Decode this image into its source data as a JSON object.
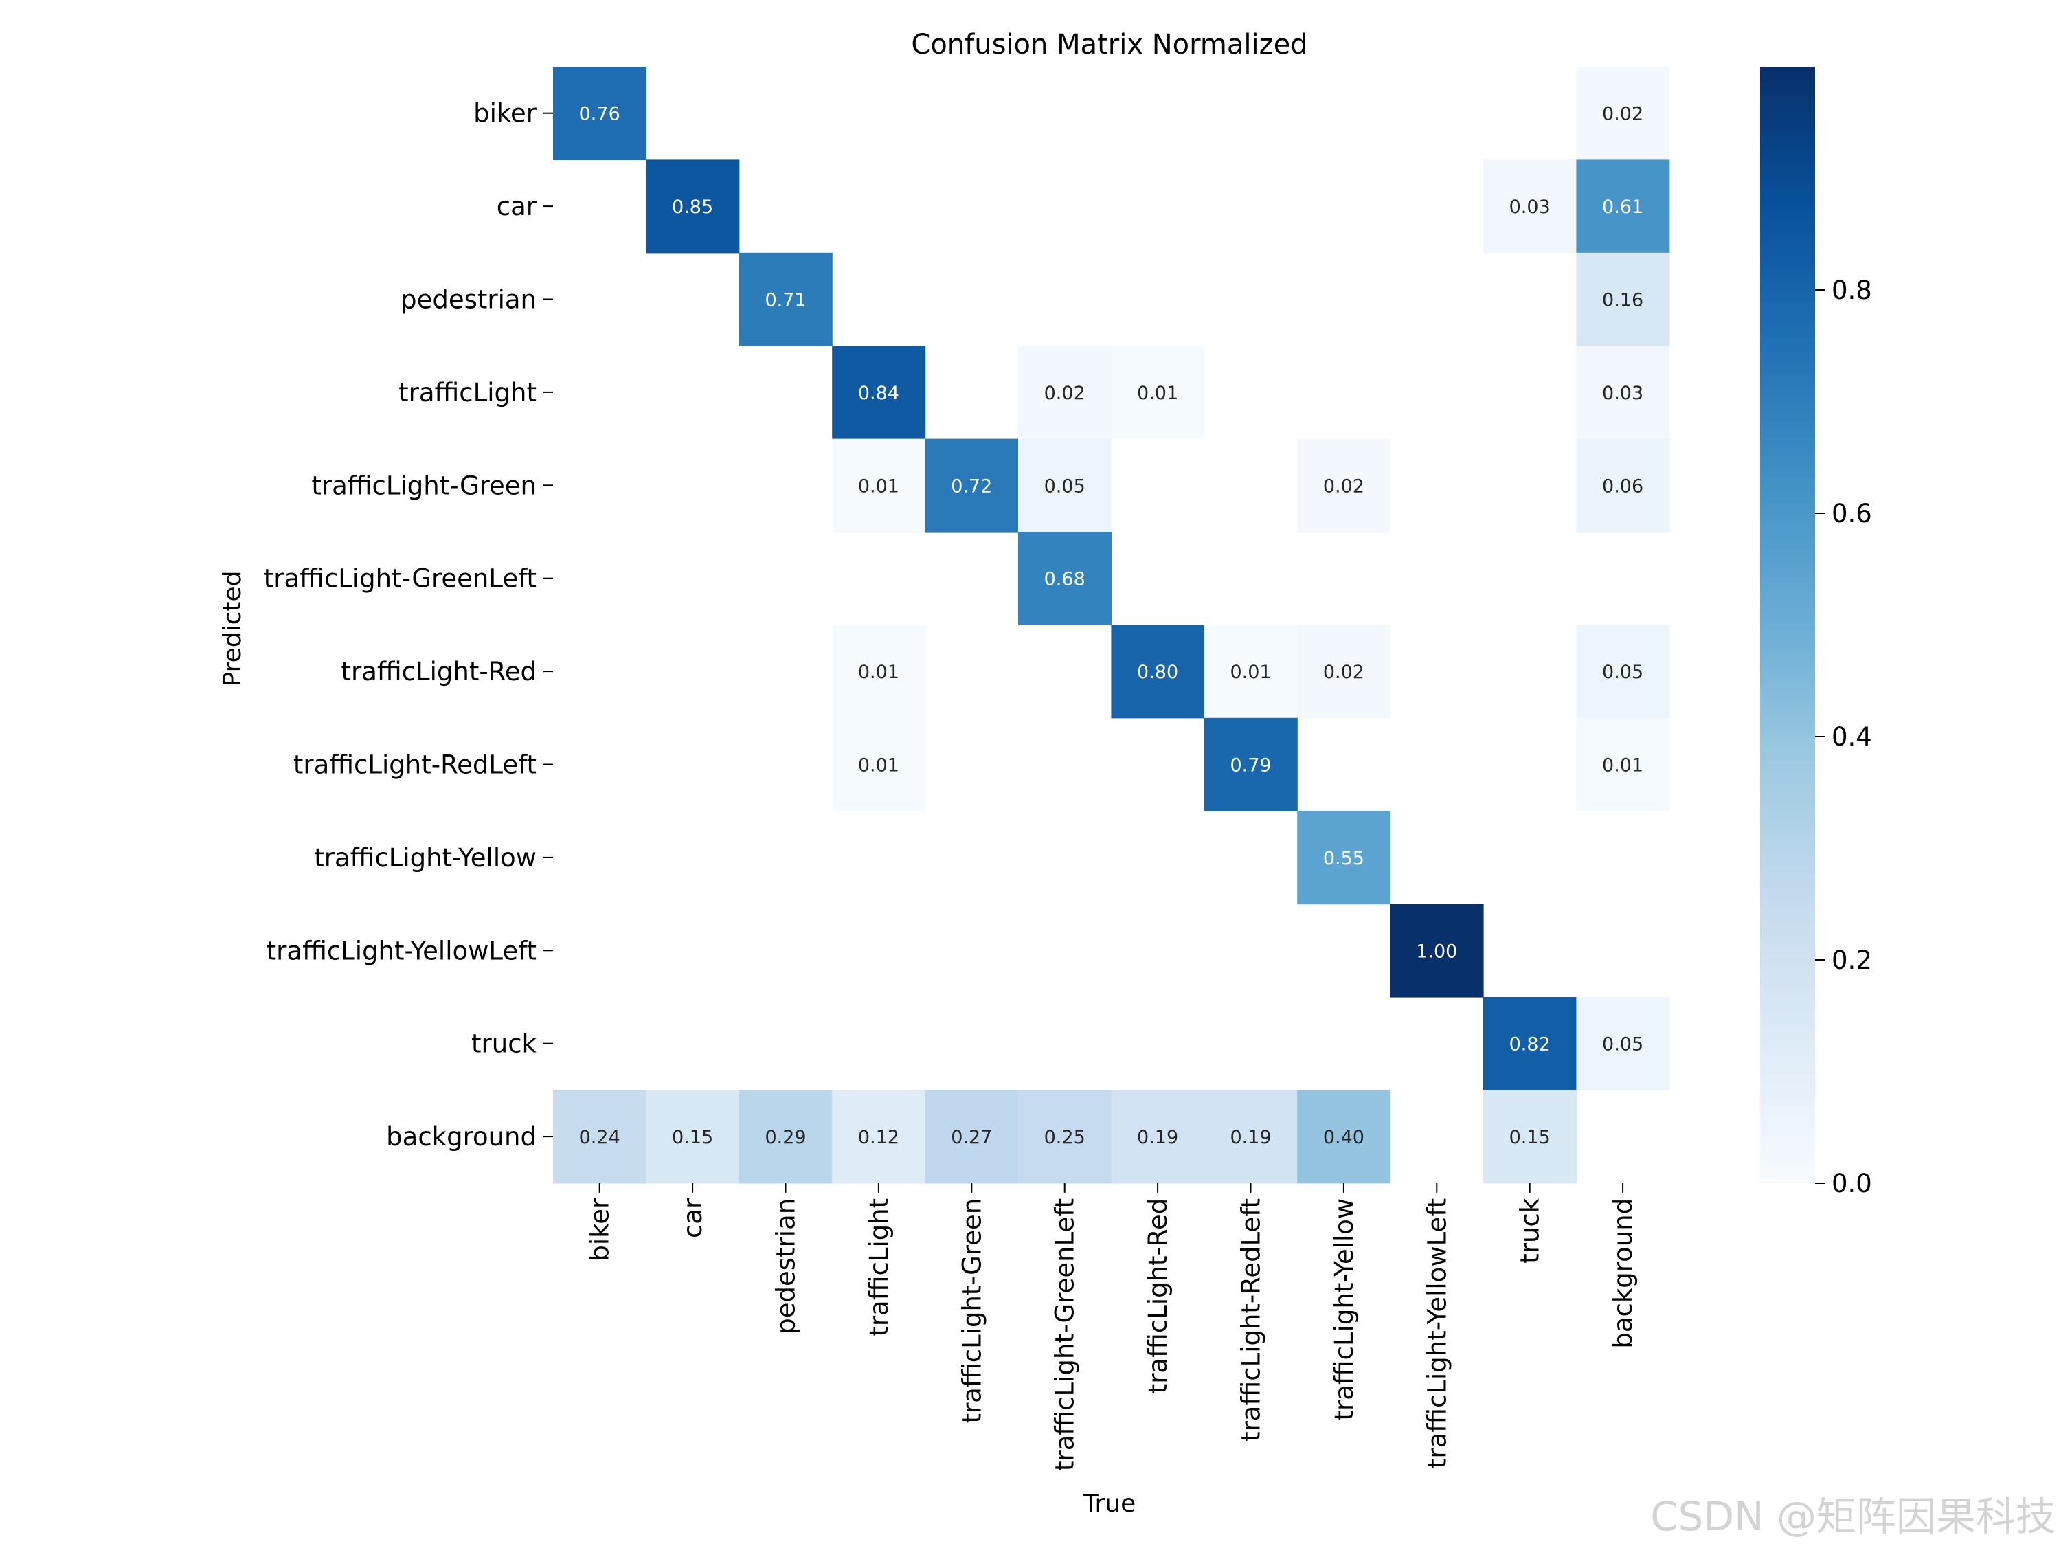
{
  "chart_data": {
    "type": "heatmap",
    "title": "Confusion Matrix Normalized",
    "xlabel": "True",
    "ylabel": "Predicted",
    "x_categories": [
      "biker",
      "car",
      "pedestrian",
      "trafficLight",
      "trafficLight-Green",
      "trafficLight-GreenLeft",
      "trafficLight-Red",
      "trafficLight-RedLeft",
      "trafficLight-Yellow",
      "trafficLight-YellowLeft",
      "truck",
      "background"
    ],
    "y_categories": [
      "biker",
      "car",
      "pedestrian",
      "trafficLight",
      "trafficLight-Green",
      "trafficLight-GreenLeft",
      "trafficLight-Red",
      "trafficLight-RedLeft",
      "trafficLight-Yellow",
      "trafficLight-YellowLeft",
      "truck",
      "background"
    ],
    "values": [
      [
        0.76,
        null,
        null,
        null,
        null,
        null,
        null,
        null,
        null,
        null,
        null,
        0.02
      ],
      [
        null,
        0.85,
        null,
        null,
        null,
        null,
        null,
        null,
        null,
        null,
        0.03,
        0.61
      ],
      [
        null,
        null,
        0.71,
        null,
        null,
        null,
        null,
        null,
        null,
        null,
        null,
        0.16
      ],
      [
        null,
        null,
        null,
        0.84,
        null,
        0.02,
        0.01,
        null,
        null,
        null,
        null,
        0.03
      ],
      [
        null,
        null,
        null,
        0.01,
        0.72,
        0.05,
        null,
        null,
        0.02,
        null,
        null,
        0.06
      ],
      [
        null,
        null,
        null,
        null,
        null,
        0.68,
        null,
        null,
        null,
        null,
        null,
        null
      ],
      [
        null,
        null,
        null,
        0.01,
        null,
        null,
        0.8,
        0.01,
        0.02,
        null,
        null,
        0.05
      ],
      [
        null,
        null,
        null,
        0.01,
        null,
        null,
        null,
        0.79,
        null,
        null,
        null,
        0.01
      ],
      [
        null,
        null,
        null,
        null,
        null,
        null,
        null,
        null,
        0.55,
        null,
        null,
        null
      ],
      [
        null,
        null,
        null,
        null,
        null,
        null,
        null,
        null,
        null,
        1.0,
        null,
        null
      ],
      [
        null,
        null,
        null,
        null,
        null,
        null,
        null,
        null,
        null,
        null,
        0.82,
        0.05
      ],
      [
        0.24,
        0.15,
        0.29,
        0.12,
        0.27,
        0.25,
        0.19,
        0.19,
        0.4,
        null,
        0.15,
        null
      ]
    ],
    "colorbar": {
      "ticks": [
        0.0,
        0.2,
        0.4,
        0.6,
        0.8
      ],
      "range": [
        0,
        1
      ],
      "colormap": "Blues"
    },
    "grid": false
  },
  "watermark": "CSDN @矩阵因果科技"
}
